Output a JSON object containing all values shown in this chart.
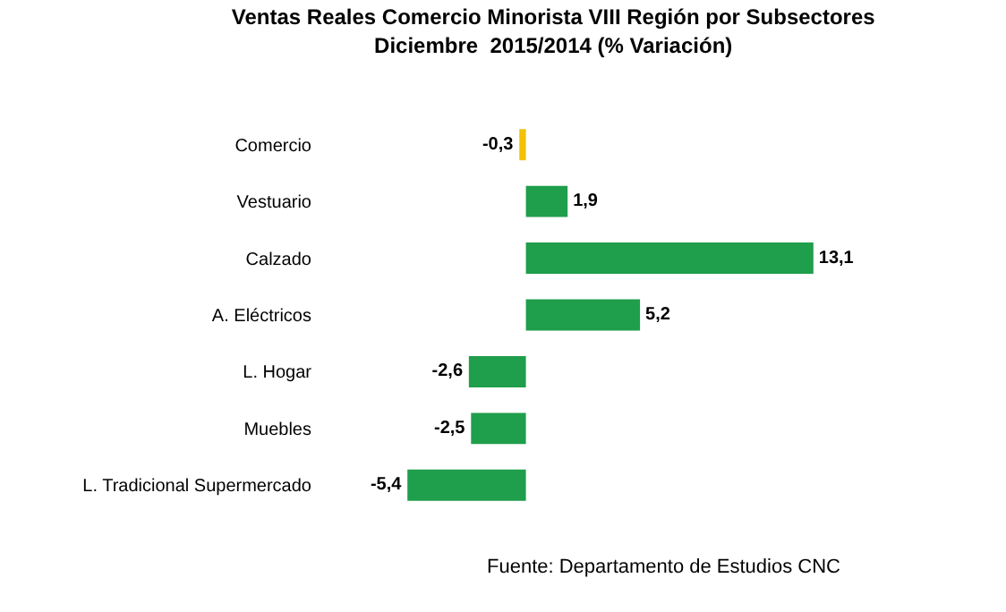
{
  "chart_data": {
    "type": "bar",
    "orientation": "horizontal",
    "title": "Ventas Reales Comercio Minorista VIII Región por Subsectores",
    "subtitle": "Diciembre  2015/2014 (% Variación)",
    "categories": [
      "Comercio",
      "Vestuario",
      "Calzado",
      "A. Eléctricos",
      "L. Hogar",
      "Muebles",
      "L. Tradicional Supermercado"
    ],
    "values": [
      -0.3,
      1.9,
      13.1,
      5.2,
      -2.6,
      -2.5,
      -5.4
    ],
    "value_labels": [
      "-0,3",
      "1,9",
      "13,1",
      "5,2",
      "-2,6",
      "-2,5",
      "-5,4"
    ],
    "colors": [
      "#f2c200",
      "#1f9e4b",
      "#1f9e4b",
      "#1f9e4b",
      "#1f9e4b",
      "#1f9e4b",
      "#1f9e4b"
    ],
    "annotations": [
      "Fuente: Departamento de Estudios CNC"
    ],
    "legend": false
  }
}
